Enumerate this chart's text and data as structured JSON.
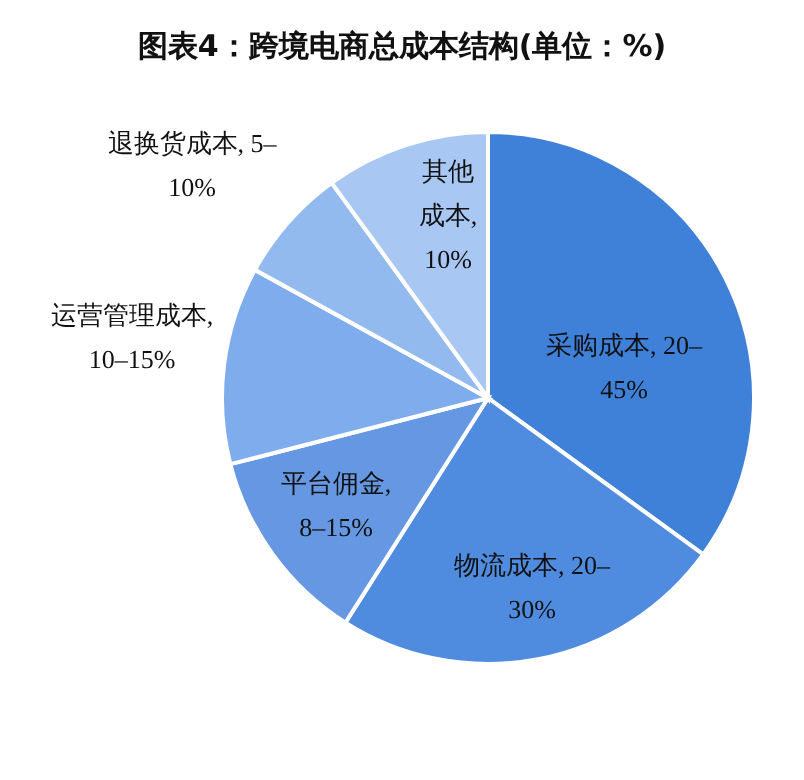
{
  "chart_data": {
    "type": "pie",
    "title": "图表4：跨境电商总成本结构(单位：%)",
    "categories": [
      "采购成本, 20–45%",
      "物流成本, 20–30%",
      "平台佣金, 8–15%",
      "运营管理成本, 10–15%",
      "退换货成本, 5–10%",
      "其他成本, 10%"
    ],
    "values": [
      35,
      24,
      12,
      12,
      7,
      10
    ],
    "colors": [
      "#3f80d8",
      "#4f8ce0",
      "#6597e3",
      "#7eacec",
      "#93baef",
      "#a9c7f3"
    ]
  }
}
